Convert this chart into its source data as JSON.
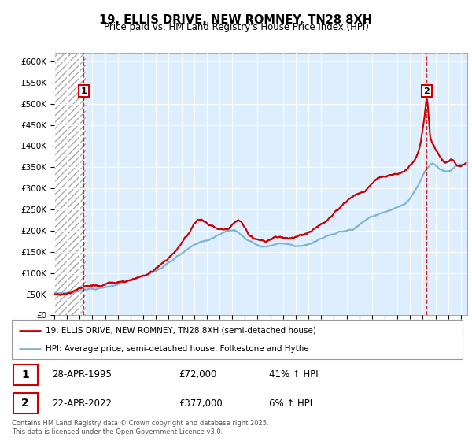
{
  "title": "19, ELLIS DRIVE, NEW ROMNEY, TN28 8XH",
  "subtitle": "Price paid vs. HM Land Registry's House Price Index (HPI)",
  "ylabel_ticks": [
    "£0",
    "£50K",
    "£100K",
    "£150K",
    "£200K",
    "£250K",
    "£300K",
    "£350K",
    "£400K",
    "£450K",
    "£500K",
    "£550K",
    "£600K"
  ],
  "ylim": [
    0,
    620000
  ],
  "xlim_start": 1993.0,
  "xlim_end": 2025.5,
  "point1_x": 1995.32,
  "point1_y": 72000,
  "point1_label": "1",
  "point1_marker_y": 530000,
  "point1_date": "28-APR-1995",
  "point1_price": "£72,000",
  "point1_hpi": "41% ↑ HPI",
  "point2_x": 2022.31,
  "point2_y": 377000,
  "point2_label": "2",
  "point2_marker_y": 530000,
  "point2_date": "22-APR-2022",
  "point2_price": "£377,000",
  "point2_hpi": "6% ↑ HPI",
  "legend_line1": "19, ELLIS DRIVE, NEW ROMNEY, TN28 8XH (semi-detached house)",
  "legend_line2": "HPI: Average price, semi-detached house, Folkestone and Hythe",
  "footer": "Contains HM Land Registry data © Crown copyright and database right 2025.\nThis data is licensed under the Open Government Licence v3.0.",
  "line_color_red": "#cc0000",
  "line_color_blue": "#7fb3d3",
  "bg_hatch_color": "#cccccc",
  "grid_color": "#b0c4d8",
  "marker_box_color": "#cc0000",
  "plot_bg_color": "#ddeeff"
}
